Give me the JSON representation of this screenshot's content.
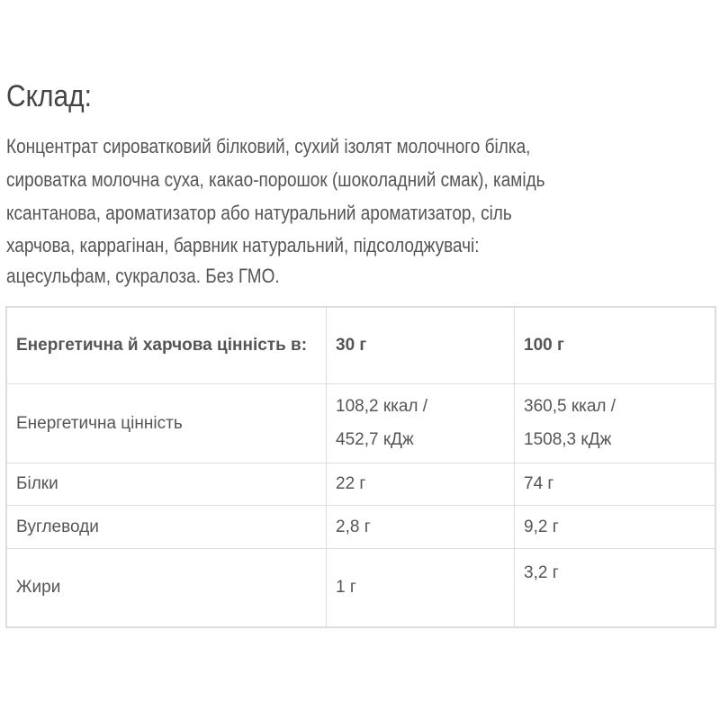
{
  "heading": "Склад:",
  "composition_lines": [
    "Концентрат сироватковий білковий, сухий ізолят молочного білка,",
    "сироватка молочна суха, какао-порошок (шоколадний смак),  камідь",
    "ксантанова,  ароматизатор або натуральний ароматизатор, сіль",
    "харчова, каррагінан, барвник натуральний, підсолоджувачі:",
    "ацесульфам, сукралоза. Без ГМО."
  ],
  "table": {
    "header": [
      "Енергетична й харчова цінність в:",
      "30 г",
      "100 г"
    ],
    "rows": [
      {
        "label": "Енергетична цінність",
        "v30": [
          "108,2 ккал /",
          "452,7 кДж"
        ],
        "v100": [
          "360,5 ккал /",
          "1508,3 кДж"
        ]
      },
      {
        "label": "Білки",
        "v30": "22 г",
        "v100": "74 г"
      },
      {
        "label": "Вуглеводи",
        "v30": "2,8 г",
        "v100": "9,2 г"
      },
      {
        "label": "Жири",
        "v30": "1 г",
        "v100": "3,2 г"
      }
    ]
  }
}
